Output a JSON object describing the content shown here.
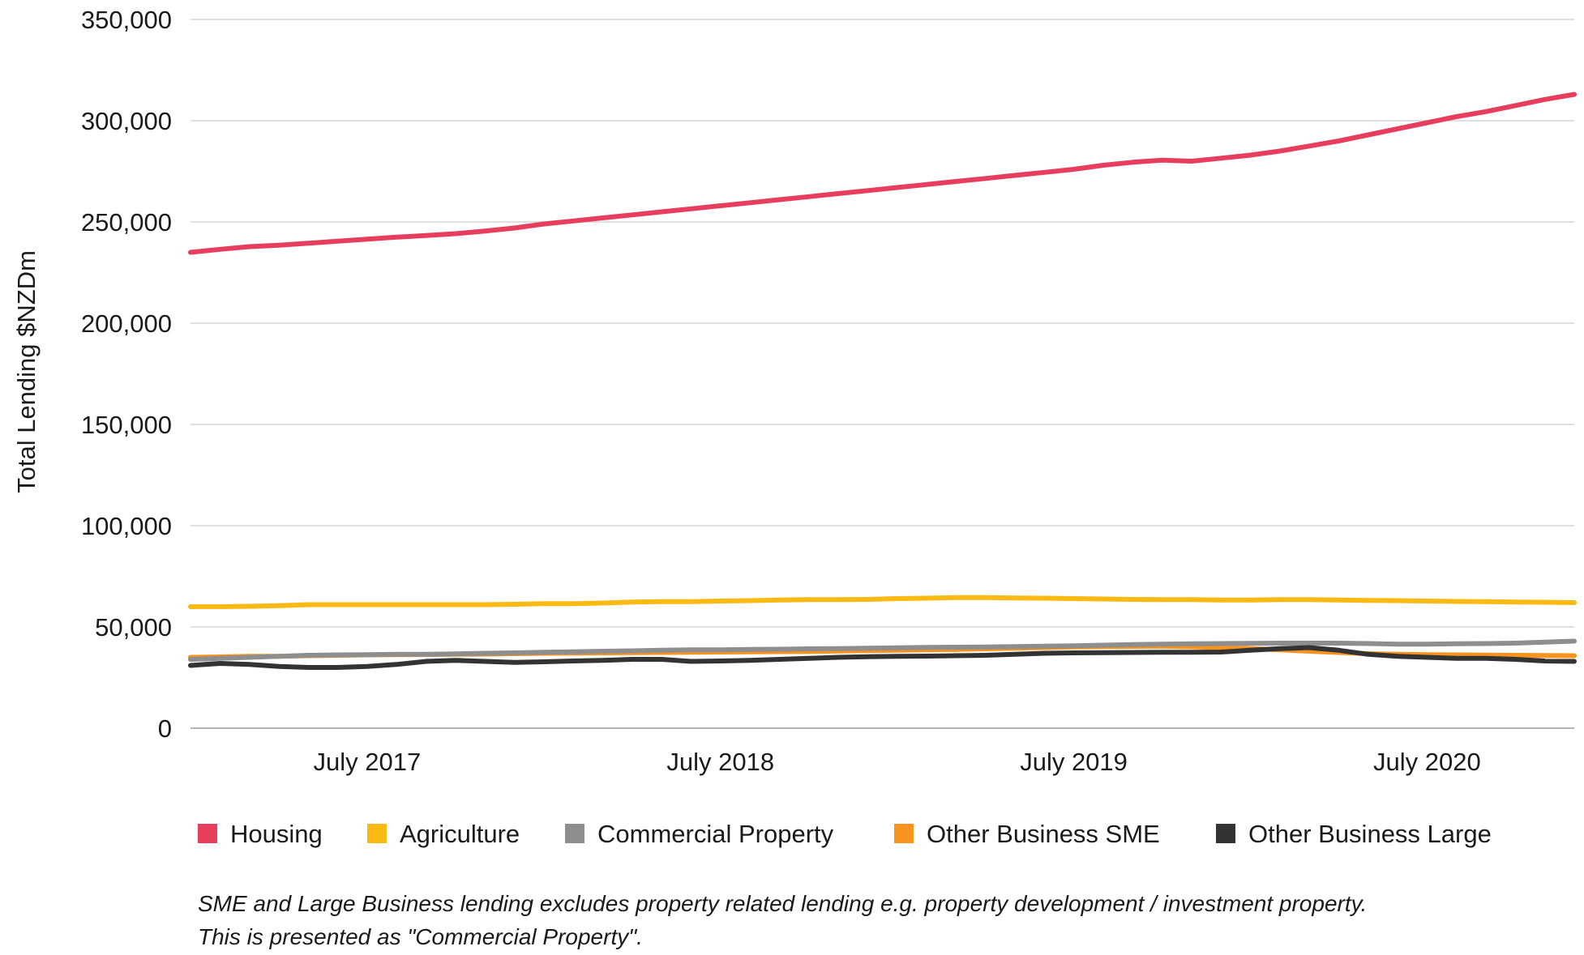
{
  "chart_data": {
    "type": "line",
    "title": "",
    "xlabel": "",
    "ylabel": "Total Lending $NZDm",
    "ylim": [
      0,
      350000
    ],
    "y_ticks": [
      0,
      50000,
      100000,
      150000,
      200000,
      250000,
      300000,
      350000
    ],
    "y_tick_labels": [
      "0",
      "50,000",
      "100,000",
      "150,000",
      "200,000",
      "250,000",
      "300,000",
      "350,000"
    ],
    "x_start": "2017-01",
    "x_end": "2020-12",
    "x_tick_labels": [
      {
        "label": "July 2017",
        "index": 6
      },
      {
        "label": "July 2018",
        "index": 18
      },
      {
        "label": "July 2019",
        "index": 30
      },
      {
        "label": "July 2020",
        "index": 42
      }
    ],
    "grid": true,
    "legend_position": "bottom",
    "series": [
      {
        "name": "Housing",
        "color": "#e83e5e",
        "values": [
          235000,
          236500,
          237800,
          238500,
          239500,
          240500,
          241500,
          242500,
          243300,
          244200,
          245500,
          247000,
          249000,
          250500,
          252000,
          253500,
          255000,
          256500,
          258000,
          259500,
          261000,
          262500,
          264000,
          265500,
          267000,
          268500,
          270000,
          271500,
          273000,
          274500,
          276000,
          278000,
          279500,
          280500,
          280000,
          281500,
          283000,
          285000,
          287500,
          290000,
          293000,
          296000,
          299000,
          302000,
          304500,
          307500,
          310500,
          313000
        ]
      },
      {
        "name": "Agriculture",
        "color": "#fbb913",
        "values": [
          60000,
          60000,
          60200,
          60500,
          61000,
          61000,
          61000,
          61000,
          61000,
          61000,
          61000,
          61200,
          61500,
          61500,
          61800,
          62300,
          62500,
          62500,
          62800,
          63000,
          63300,
          63500,
          63500,
          63600,
          64000,
          64200,
          64500,
          64500,
          64300,
          64200,
          64000,
          63800,
          63600,
          63500,
          63500,
          63300,
          63300,
          63500,
          63500,
          63300,
          63100,
          63000,
          62800,
          62600,
          62500,
          62300,
          62200,
          62000
        ]
      },
      {
        "name": "Commercial Property",
        "color": "#8e8e8e",
        "values": [
          34000,
          34500,
          35000,
          35500,
          36000,
          36200,
          36300,
          36500,
          36500,
          36700,
          37000,
          37200,
          37500,
          37700,
          38000,
          38200,
          38500,
          38700,
          38700,
          38900,
          39000,
          39200,
          39300,
          39500,
          39700,
          39900,
          40000,
          40100,
          40300,
          40500,
          40700,
          41000,
          41300,
          41500,
          41700,
          41800,
          41900,
          42000,
          42000,
          42000,
          41800,
          41500,
          41500,
          41700,
          41800,
          42000,
          42500,
          43000
        ]
      },
      {
        "name": "Other Business SME",
        "color": "#f7931e",
        "values": [
          35000,
          35200,
          35500,
          35500,
          35800,
          36000,
          36200,
          36300,
          36400,
          36500,
          36600,
          36800,
          37000,
          37100,
          37200,
          37300,
          37400,
          37500,
          37600,
          37700,
          37800,
          37900,
          38100,
          38300,
          38500,
          38700,
          38900,
          39200,
          39500,
          39800,
          40100,
          40300,
          40400,
          40500,
          40200,
          39800,
          39300,
          38700,
          38000,
          37400,
          36800,
          36500,
          36300,
          36200,
          36100,
          36000,
          35900,
          35800
        ]
      },
      {
        "name": "Other Business Large",
        "color": "#333333",
        "values": [
          31000,
          32000,
          31500,
          30500,
          30000,
          30000,
          30500,
          31500,
          33000,
          33500,
          33000,
          32500,
          32800,
          33200,
          33500,
          34000,
          34000,
          33000,
          33200,
          33500,
          34000,
          34500,
          35000,
          35300,
          35500,
          35600,
          35800,
          36000,
          36500,
          37000,
          37200,
          37300,
          37400,
          37500,
          37500,
          37600,
          38500,
          39300,
          39800,
          38500,
          36500,
          35500,
          35000,
          34500,
          34500,
          34000,
          33200,
          33000
        ]
      }
    ]
  },
  "footnote": {
    "line1": "SME and Large Business lending excludes property related lending e.g. property development / investment property.",
    "line2": "This is presented as \"Commercial Property\"."
  }
}
